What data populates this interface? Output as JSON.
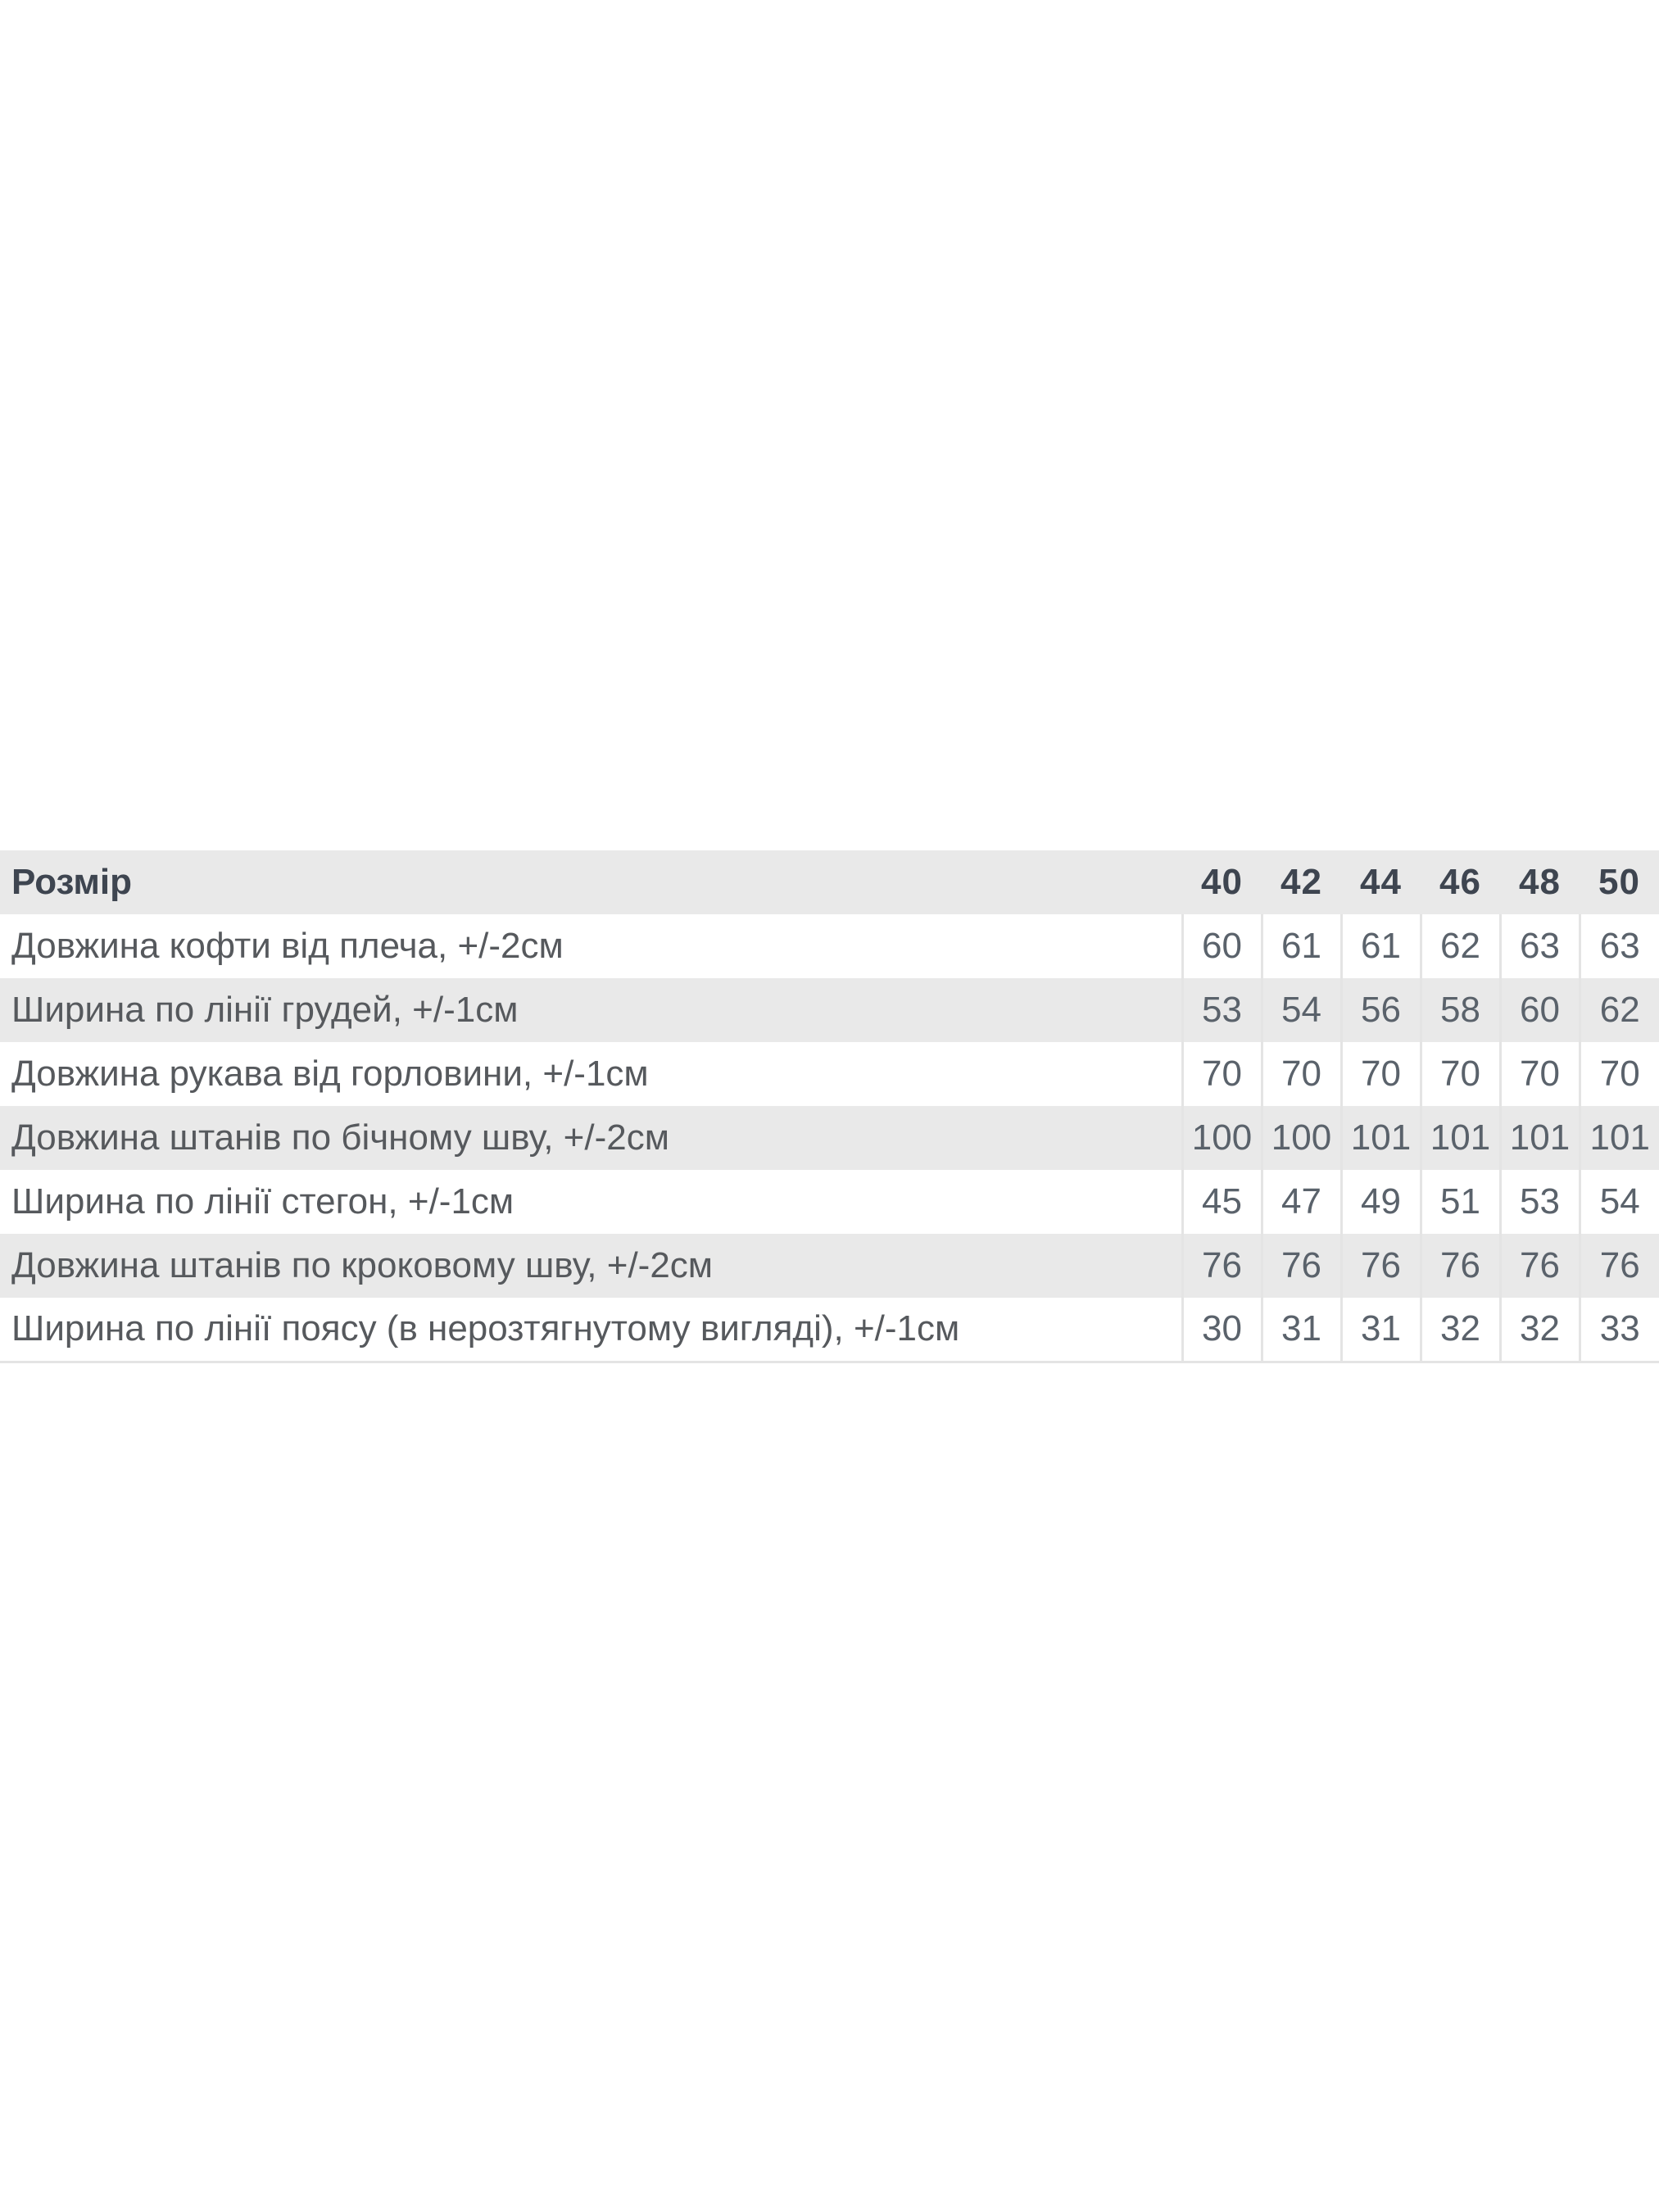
{
  "page": {
    "background": "#ffffff"
  },
  "size_chart": {
    "header": {
      "label": "Розмір",
      "sizes": [
        "40",
        "42",
        "44",
        "46",
        "48",
        "50"
      ]
    },
    "rows": [
      {
        "label": "Довжина кофти від плеча, +/-2см",
        "values": [
          "60",
          "61",
          "61",
          "62",
          "63",
          "63"
        ]
      },
      {
        "label": "Ширина по лінії грудей, +/-1см",
        "values": [
          "53",
          "54",
          "56",
          "58",
          "60",
          "62"
        ]
      },
      {
        "label": "Довжина рукава від горловини, +/-1см",
        "values": [
          "70",
          "70",
          "70",
          "70",
          "70",
          "70"
        ]
      },
      {
        "label": "Довжина штанів по бічному шву, +/-2см",
        "values": [
          "100",
          "100",
          "101",
          "101",
          "101",
          "101"
        ]
      },
      {
        "label": "Ширина по лінії стегон, +/-1см",
        "values": [
          "45",
          "47",
          "49",
          "51",
          "53",
          "54"
        ]
      },
      {
        "label": "Довжина штанів по кроковому шву, +/-2см",
        "values": [
          "76",
          "76",
          "76",
          "76",
          "76",
          "76"
        ]
      },
      {
        "label": "Ширина по лінії поясу (в нерозтягнутому вигляді), +/-1см",
        "values": [
          "30",
          "31",
          "31",
          "32",
          "32",
          "33"
        ]
      }
    ],
    "colors": {
      "stripe_bg": "#e9e9e9",
      "header_text": "#3e4550",
      "label_text": "#56595d",
      "value_text": "#5a626b",
      "border": "#e4e4e4"
    }
  }
}
